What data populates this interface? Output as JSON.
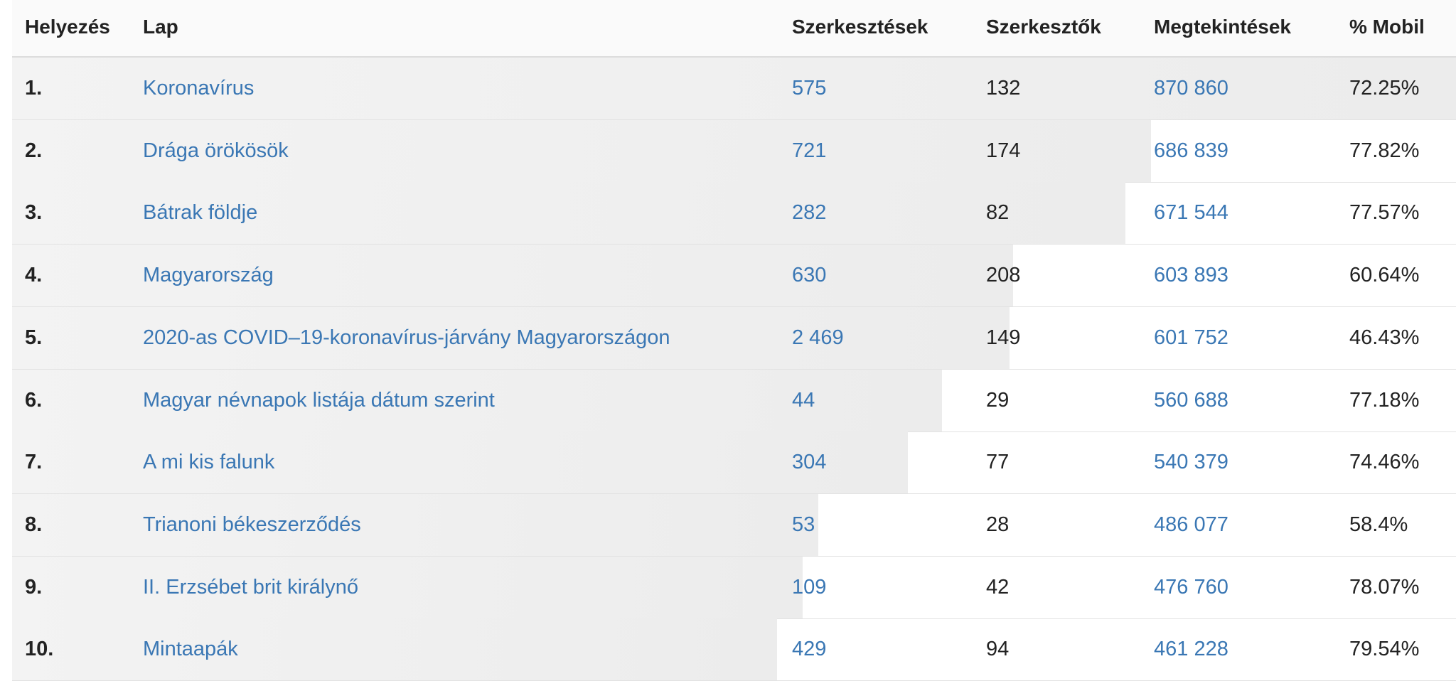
{
  "table": {
    "columns": [
      "Helyezés",
      "Lap",
      "Szerkesztések",
      "Szerkesztők",
      "Megtekintések",
      "% Mobil"
    ],
    "rows": [
      {
        "rank": "1.",
        "page": "Koronavírus",
        "edits": "575",
        "editors": "132",
        "views": "870 860",
        "mobile": "72.25%"
      },
      {
        "rank": "2.",
        "page": "Drága örökösök",
        "edits": "721",
        "editors": "174",
        "views": "686 839",
        "mobile": "77.82%"
      },
      {
        "rank": "3.",
        "page": "Bátrak földje",
        "edits": "282",
        "editors": "82",
        "views": "671 544",
        "mobile": "77.57%"
      },
      {
        "rank": "4.",
        "page": "Magyarország",
        "edits": "630",
        "editors": "208",
        "views": "603 893",
        "mobile": "60.64%"
      },
      {
        "rank": "5.",
        "page": "2020-as COVID–19-koronavírus-járvány Magyarországon",
        "edits": "2 469",
        "editors": "149",
        "views": "601 752",
        "mobile": "46.43%"
      },
      {
        "rank": "6.",
        "page": "Magyar névnapok listája dátum szerint",
        "edits": "44",
        "editors": "29",
        "views": "560 688",
        "mobile": "77.18%"
      },
      {
        "rank": "7.",
        "page": "A mi kis falunk",
        "edits": "304",
        "editors": "77",
        "views": "540 379",
        "mobile": "74.46%"
      },
      {
        "rank": "8.",
        "page": "Trianoni békeszerződés",
        "edits": "53",
        "editors": "28",
        "views": "486 077",
        "mobile": "58.4%"
      },
      {
        "rank": "9.",
        "page": "II. Erzsébet brit királynő",
        "edits": "109",
        "editors": "42",
        "views": "476 760",
        "mobile": "78.07%"
      },
      {
        "rank": "10.",
        "page": "Mintaapák",
        "edits": "429",
        "editors": "94",
        "views": "461 228",
        "mobile": "79.54%"
      }
    ]
  }
}
